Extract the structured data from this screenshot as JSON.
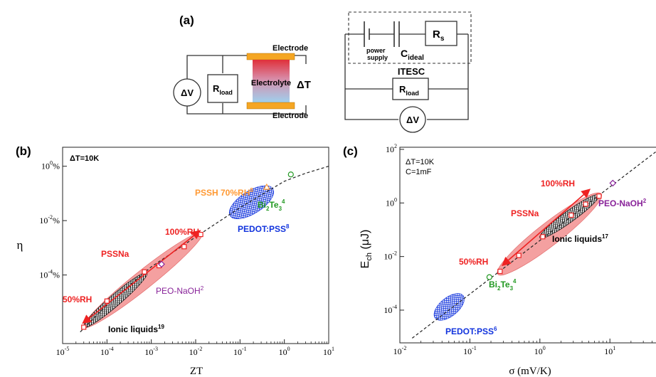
{
  "panel_a": {
    "label": "(a)",
    "delta_v": "ΔV",
    "r_load": "R",
    "r_load_sub": "load",
    "electrode_top": "Electrode",
    "electrolyte": "Electrolyte",
    "electrode_bottom": "Electrode",
    "delta_t": "ΔT",
    "power_supply_1": "power",
    "power_supply_2": "supply",
    "c_ideal": "C",
    "c_ideal_sub": "ideal",
    "r_s": "R",
    "r_s_sub": "s",
    "itesc": "ITESC",
    "r_load2": "R",
    "r_load2_sub": "load",
    "delta_v2": "ΔV"
  },
  "chart_data": [
    {
      "type": "scatter",
      "panel_label": "(b)",
      "condition": "ΔT=10K",
      "xlabel": "ZT",
      "ylabel": "η",
      "xscale": "log",
      "yscale": "log",
      "xlim": [
        1e-05,
        10
      ],
      "ylim": [
        3e-07,
        5
      ],
      "xticks": [
        {
          "v": 1e-05,
          "b": "10",
          "e": "-5"
        },
        {
          "v": 0.0001,
          "b": "10",
          "e": "-4"
        },
        {
          "v": 0.001,
          "b": "10",
          "e": "-3"
        },
        {
          "v": 0.01,
          "b": "10",
          "e": "-2"
        },
        {
          "v": 0.1,
          "b": "10",
          "e": "-1"
        },
        {
          "v": 1,
          "b": "10",
          "e": "0"
        },
        {
          "v": 10,
          "b": "10",
          "e": "1"
        }
      ],
      "yticks": [
        {
          "v": 1,
          "b": "10",
          "e": "0",
          "s": "%"
        },
        {
          "v": 0.01,
          "b": "10",
          "e": "-2",
          "s": "%"
        },
        {
          "v": 0.0001,
          "b": "10",
          "e": "-4",
          "s": "%"
        }
      ],
      "series": [
        {
          "name": "PSSNa",
          "color": "#ee2222",
          "points": [
            [
              3e-05,
              1.2e-06
            ],
            [
              0.0001,
              1.1e-05
            ],
            [
              0.0007,
              0.00013
            ],
            [
              0.0015,
              0.00022
            ],
            [
              0.0055,
              0.0011
            ],
            [
              0.013,
              0.0031
            ]
          ]
        },
        {
          "name": "PEO-NaOH",
          "color": "#882299",
          "points": [
            [
              0.0017,
              0.00025
            ]
          ]
        },
        {
          "name": "Bi2Te3",
          "color": "#229922",
          "points": [
            [
              1.4,
              0.5
            ]
          ]
        },
        {
          "name": "PSSH 70%RH",
          "color": "#ff9933",
          "points": [
            [
              0.4,
              0.17
            ]
          ]
        }
      ],
      "regions": [
        {
          "name": "Ionic liquids",
          "kind": "hatch",
          "color": "#000000",
          "center": [
            8e-05,
            7e-06
          ],
          "x_range": [
            3e-05,
            0.0008
          ],
          "y_range": [
            1.2e-06,
            0.00012
          ]
        },
        {
          "name": "PEDOT:PSS",
          "kind": "dots",
          "color": "#1133dd",
          "center": [
            0.16,
            0.04
          ],
          "x_range": [
            0.06,
            0.55
          ],
          "y_range": [
            0.015,
            0.15
          ]
        },
        {
          "name": "PSSNa",
          "kind": "fill",
          "color": "#f08080",
          "center": [
            0.002,
            0.0002
          ],
          "x_range": [
            3e-05,
            0.014
          ],
          "y_range": [
            1.2e-06,
            0.0035
          ]
        }
      ],
      "trend_line": [
        [
          2.5e-05,
          8e-07
        ],
        [
          0.0001,
          8e-06
        ],
        [
          0.001,
          0.0002
        ],
        [
          0.01,
          0.0025
        ],
        [
          0.1,
          0.03
        ],
        [
          1,
          0.28
        ],
        [
          3,
          0.55
        ],
        [
          10,
          1
        ]
      ],
      "annotations": [
        {
          "text": "PSSNa",
          "color": "#ee2222"
        },
        {
          "text": "100%RH",
          "color": "#ee2222"
        },
        {
          "text": "50%RH",
          "color": "#ee2222"
        },
        {
          "text": "PEO-NaOH",
          "sup": "2",
          "color": "#882299"
        },
        {
          "text": "Ionic liquids",
          "sup": "19",
          "color": "#000000"
        },
        {
          "text": "PEDOT:PSS",
          "sup": "8",
          "color": "#1133dd"
        },
        {
          "text": "Bi",
          "sub": "2",
          "text2": "Te",
          "sub2": "3",
          "sup": "4",
          "color": "#229922"
        },
        {
          "text": "PSSH 70%RH",
          "sup": "8",
          "color": "#ff9933"
        }
      ]
    },
    {
      "type": "scatter",
      "panel_label": "(c)",
      "condition": "ΔT=10K",
      "condition2": "C=1mF",
      "xlabel": "σ (mV/K)",
      "ylabel": "E",
      "ylabel_sub": "ch",
      "ylabel_unit": " (μJ)",
      "xscale": "log",
      "yscale": "log",
      "xlim": [
        0.01,
        50
      ],
      "ylim": [
        6e-06,
        120
      ],
      "xticks": [
        {
          "v": 0.01,
          "b": "10",
          "e": "-2"
        },
        {
          "v": 0.1,
          "b": "10",
          "e": "-1"
        },
        {
          "v": 1,
          "b": "10",
          "e": "0"
        },
        {
          "v": 10,
          "b": "10",
          "e": "1"
        }
      ],
      "yticks": [
        {
          "v": 100,
          "b": "10",
          "e": "2"
        },
        {
          "v": 1,
          "b": "10",
          "e": "0"
        },
        {
          "v": 0.01,
          "b": "10",
          "e": "-2"
        },
        {
          "v": 0.0001,
          "b": "10",
          "e": "-4"
        }
      ],
      "series": [
        {
          "name": "PSSNa",
          "color": "#ee2222",
          "points": [
            [
              0.27,
              0.0028
            ],
            [
              0.5,
              0.011
            ],
            [
              1.1,
              0.055
            ],
            [
              2.8,
              0.35
            ],
            [
              4.5,
              0.9
            ],
            [
              7,
              1.8
            ]
          ]
        },
        {
          "name": "PEO-NaOH",
          "color": "#882299",
          "points": [
            [
              11,
              5.5
            ]
          ]
        },
        {
          "name": "Bi2Te3",
          "color": "#229922",
          "points": [
            [
              0.19,
              0.0017
            ]
          ]
        }
      ],
      "regions": [
        {
          "name": "PSSNa",
          "kind": "fill",
          "color": "#f08080",
          "center": [
            1.4,
            0.08
          ],
          "x_range": [
            0.25,
            7.5
          ],
          "y_range": [
            0.0022,
            2.2
          ]
        },
        {
          "name": "Ionic liquids",
          "kind": "hatch",
          "color": "#000000",
          "center": [
            2.5,
            0.3
          ],
          "x_range": [
            1,
            7
          ],
          "y_range": [
            0.05,
            2
          ]
        },
        {
          "name": "PEDOT:PSS",
          "kind": "dots",
          "color": "#1133dd",
          "center": [
            0.05,
            0.00012
          ],
          "x_range": [
            0.032,
            0.08
          ],
          "y_range": [
            5e-05,
            0.00035
          ]
        }
      ],
      "trend_line": [
        [
          0.015,
          9e-06
        ],
        [
          45,
          80
        ]
      ],
      "annotations": [
        {
          "text": "PSSNa",
          "color": "#ee2222"
        },
        {
          "text": "100%RH",
          "color": "#ee2222"
        },
        {
          "text": "50%RH",
          "color": "#ee2222"
        },
        {
          "text": "PEO-NaOH",
          "sup": "2",
          "color": "#882299"
        },
        {
          "text": "Ionic liquids",
          "sup": "17",
          "color": "#000000"
        },
        {
          "text": "Bi",
          "sub": "2",
          "text2": "Te",
          "sub2": "3",
          "sup": "4",
          "color": "#229922"
        },
        {
          "text": "PEDOT:PSS",
          "sup": "6",
          "color": "#1133dd"
        }
      ]
    }
  ]
}
